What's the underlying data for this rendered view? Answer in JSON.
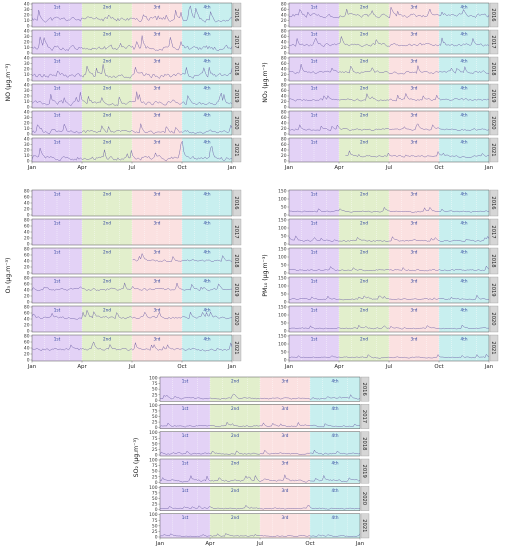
{
  "colors": {
    "q1": "#e3d2f6",
    "q2": "#e2efcc",
    "q3": "#fbe1e1",
    "q4": "#c8efef",
    "line": "#6a5ba3",
    "strip_bg": "#d6d6d6",
    "quarter_label": "#2a3f9a"
  },
  "quarters": [
    "1st",
    "2nd",
    "3rd",
    "4th"
  ],
  "month_ticks": [
    "Jan",
    "Apr",
    "Jul",
    "Oct",
    "Jan"
  ],
  "chart_data": [
    {
      "type": "line",
      "ylabel": "NO (µg.m⁻³)",
      "ylim": [
        0,
        40
      ],
      "yticks": [
        0,
        10,
        20,
        30,
        40
      ],
      "x": [
        "Jan",
        "Apr",
        "Jul",
        "Oct",
        "Jan"
      ],
      "series": [
        {
          "name": "2016",
          "base": 12,
          "amp": 18,
          "seed": 11,
          "start": 0
        },
        {
          "name": "2017",
          "base": 9,
          "amp": 18,
          "seed": 12,
          "start": 0
        },
        {
          "name": "2018",
          "base": 8,
          "amp": 17,
          "seed": 13,
          "start": 0
        },
        {
          "name": "2019",
          "base": 7,
          "amp": 15,
          "seed": 14,
          "start": 0
        },
        {
          "name": "2020",
          "base": 4,
          "amp": 12,
          "seed": 15,
          "start": 0
        },
        {
          "name": "2021",
          "base": 5,
          "amp": 16,
          "seed": 16,
          "start": 0
        }
      ]
    },
    {
      "type": "line",
      "ylabel": "NO₂ (µg.m⁻³)",
      "ylim": [
        0,
        80
      ],
      "yticks": [
        0,
        20,
        40,
        60,
        80
      ],
      "x": [
        "Jan",
        "Apr",
        "Jul",
        "Oct",
        "Jan"
      ],
      "series": [
        {
          "name": "2016",
          "base": 38,
          "amp": 28,
          "seed": 21,
          "start": 0
        },
        {
          "name": "2017",
          "base": 30,
          "amp": 22,
          "seed": 22,
          "start": 0
        },
        {
          "name": "2018",
          "base": 28,
          "amp": 22,
          "seed": 23,
          "start": 0
        },
        {
          "name": "2019",
          "base": 26,
          "amp": 18,
          "seed": 24,
          "start": 0
        },
        {
          "name": "2020",
          "base": 16,
          "amp": 14,
          "seed": 25,
          "start": 0
        },
        {
          "name": "2021",
          "base": 18,
          "amp": 16,
          "seed": 26,
          "start": 0.28
        }
      ]
    },
    {
      "type": "line",
      "ylabel": "O₃ (µg.m⁻³)",
      "ylim": [
        0,
        80
      ],
      "yticks": [
        0,
        20,
        40,
        60,
        80
      ],
      "x": [
        "Jan",
        "Apr",
        "Jul",
        "Oct",
        "Jan"
      ],
      "series": [
        {
          "name": "2016",
          "base": 0,
          "amp": 0,
          "seed": 31,
          "start": 2
        },
        {
          "name": "2017",
          "base": 0,
          "amp": 0,
          "seed": 32,
          "start": 2
        },
        {
          "name": "2018",
          "base": 42,
          "amp": 16,
          "seed": 33,
          "start": 0.5
        },
        {
          "name": "2019",
          "base": 42,
          "amp": 18,
          "seed": 34,
          "start": 0
        },
        {
          "name": "2020",
          "base": 45,
          "amp": 18,
          "seed": 35,
          "start": 0
        },
        {
          "name": "2021",
          "base": 35,
          "amp": 18,
          "seed": 36,
          "start": 0
        }
      ]
    },
    {
      "type": "line",
      "ylabel": "PM₁₀ (µg.m⁻³)",
      "ylim": [
        0,
        150
      ],
      "yticks": [
        0,
        50,
        100,
        150
      ],
      "x": [
        "Jan",
        "Apr",
        "Jul",
        "Oct",
        "Jan"
      ],
      "series": [
        {
          "name": "2016",
          "base": 22,
          "amp": 20,
          "seed": 41,
          "start": 0
        },
        {
          "name": "2017",
          "base": 20,
          "amp": 22,
          "seed": 42,
          "start": 0
        },
        {
          "name": "2018",
          "base": 18,
          "amp": 20,
          "seed": 43,
          "start": 0
        },
        {
          "name": "2019",
          "base": 18,
          "amp": 18,
          "seed": 44,
          "start": 0
        },
        {
          "name": "2020",
          "base": 16,
          "amp": 18,
          "seed": 45,
          "start": 0
        },
        {
          "name": "2021",
          "base": 16,
          "amp": 16,
          "seed": 46,
          "start": 0
        }
      ]
    },
    {
      "type": "line",
      "ylabel": "SO₂ (µg.m⁻³)",
      "ylim": [
        0,
        100
      ],
      "yticks": [
        0,
        25,
        50,
        75,
        100
      ],
      "x": [
        "Jan",
        "Apr",
        "Jul",
        "Oct",
        "Jan"
      ],
      "series": [
        {
          "name": "2016",
          "base": 8,
          "amp": 14,
          "seed": 51,
          "start": 0
        },
        {
          "name": "2017",
          "base": 7,
          "amp": 14,
          "seed": 52,
          "start": 0
        },
        {
          "name": "2018",
          "base": 6,
          "amp": 14,
          "seed": 53,
          "start": 0
        },
        {
          "name": "2019",
          "base": 7,
          "amp": 20,
          "seed": 54,
          "start": 0
        },
        {
          "name": "2020",
          "base": 5,
          "amp": 12,
          "seed": 55,
          "start": 0
        },
        {
          "name": "2021",
          "base": 4,
          "amp": 10,
          "seed": 56,
          "start": 0
        }
      ]
    }
  ]
}
